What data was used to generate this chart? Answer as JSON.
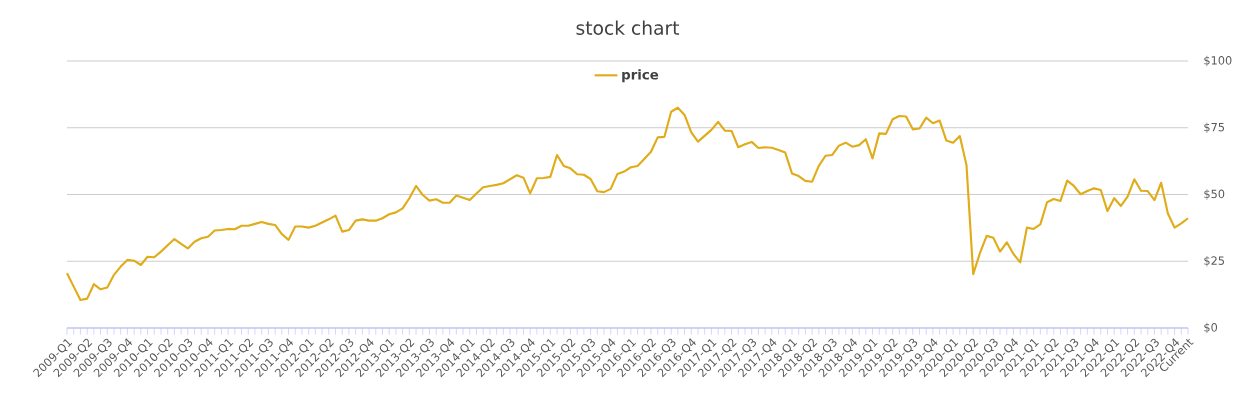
{
  "chart_data": {
    "type": "line",
    "title": "stock chart",
    "categories": [
      "2009-Q1",
      null,
      null,
      "2009-Q2",
      null,
      null,
      "2009-Q3",
      null,
      null,
      "2009-Q4",
      null,
      null,
      "2010-Q1",
      null,
      null,
      "2010-Q2",
      null,
      null,
      "2010-Q3",
      null,
      null,
      "2010-Q4",
      null,
      null,
      "2011-Q1",
      null,
      null,
      "2011-Q2",
      null,
      null,
      "2011-Q3",
      null,
      null,
      "2011-Q4",
      null,
      null,
      "2012-Q1",
      null,
      null,
      "2012-Q2",
      null,
      null,
      "2012-Q3",
      null,
      null,
      "2012-Q4",
      null,
      null,
      "2013-Q1",
      null,
      null,
      "2013-Q2",
      null,
      null,
      "2013-Q3",
      null,
      null,
      "2013-Q4",
      null,
      null,
      "2014-Q1",
      null,
      null,
      "2014-Q2",
      null,
      null,
      "2014-Q3",
      null,
      null,
      "2014-Q4",
      null,
      null,
      "2015-Q1",
      null,
      null,
      "2015-Q2",
      null,
      null,
      "2015-Q3",
      null,
      null,
      "2015-Q4",
      null,
      null,
      "2016-Q1",
      null,
      null,
      "2016-Q2",
      null,
      null,
      "2016-Q3",
      null,
      null,
      "2016-Q4",
      null,
      null,
      "2017-Q1",
      null,
      null,
      "2017-Q2",
      null,
      null,
      "2017-Q3",
      null,
      null,
      "2017-Q4",
      null,
      null,
      "2018-Q1",
      null,
      null,
      "2018-Q2",
      null,
      null,
      "2018-Q3",
      null,
      null,
      "2018-Q4",
      null,
      null,
      "2019-Q1",
      null,
      null,
      "2019-Q2",
      null,
      null,
      "2019-Q3",
      null,
      null,
      "2019-Q4",
      null,
      null,
      "2020-Q1",
      null,
      null,
      "2020-Q2",
      null,
      null,
      "2020-Q3",
      null,
      null,
      "2020-Q4",
      null,
      null,
      "2021-Q1",
      null,
      null,
      "2021-Q2",
      null,
      null,
      "2021-Q3",
      null,
      null,
      "2021-Q4",
      null,
      null,
      "2022-Q1",
      null,
      null,
      "2022-Q2",
      null,
      null,
      "2022-Q3",
      null,
      null,
      "2022-Q4",
      null,
      "Current"
    ],
    "series": [
      {
        "name": "price",
        "color": "#e0ac1a",
        "values": [
          20.5,
          15.5,
          10.5,
          11,
          16.4,
          14.5,
          15.2,
          19.9,
          23,
          25.5,
          25.2,
          23.6,
          26.7,
          26.5,
          28.6,
          31,
          33.3,
          31.5,
          29.8,
          32.3,
          33.6,
          34.2,
          36.5,
          36.7,
          37.1,
          37,
          38.3,
          38.3,
          39,
          39.7,
          39,
          38.6,
          35.2,
          33,
          38,
          38,
          37.6,
          38.3,
          39.5,
          40.7,
          42.1,
          36.1,
          36.7,
          40.2,
          40.7,
          40.2,
          40.2,
          41.1,
          42.6,
          43.3,
          44.8,
          48.6,
          53.2,
          49.8,
          47.7,
          48.2,
          46.9,
          46.9,
          49.6,
          48.8,
          47.9,
          50.4,
          52.7,
          53.2,
          53.6,
          54.2,
          55.7,
          57.2,
          56.3,
          50.4,
          56.1,
          56.2,
          56.6,
          64.8,
          60.7,
          59.8,
          57.6,
          57.4,
          55.8,
          51.2,
          50.9,
          52.1,
          57.7,
          58.6,
          60.2,
          60.7,
          63.3,
          66,
          71.4,
          71.6,
          81,
          82.5,
          79.8,
          73.3,
          69.8,
          72,
          74.2,
          77.2,
          73.9,
          73.8,
          67.7,
          68.8,
          69.7,
          67.4,
          67.7,
          67.5,
          66.7,
          65.7,
          57.9,
          56.9,
          55.1,
          54.8,
          60.7,
          64.5,
          64.8,
          68.3,
          69.4,
          67.9,
          68.5,
          70.7,
          63.5,
          72.9,
          72.7,
          78.2,
          79.4,
          79.2,
          74.4,
          74.7,
          78.8,
          76.7,
          77.7,
          70.2,
          69.4,
          71.9,
          61,
          20.2,
          28,
          34.5,
          33.8,
          28.6,
          32.1,
          27.7,
          24.6,
          37.6,
          37.1,
          38.8,
          47.1,
          48.3,
          47.6,
          55.2,
          53.2,
          50.1,
          51.3,
          52.3,
          51.7,
          43.8,
          48.6,
          45.7,
          49.2,
          55.7,
          51.4,
          51.3,
          47.9,
          54.4,
          42.9,
          37.6,
          39.2,
          41.1
        ]
      }
    ],
    "ylim": [
      0,
      100
    ],
    "yticks": [
      {
        "value": 0,
        "label": "$0"
      },
      {
        "value": 25,
        "label": "$25"
      },
      {
        "value": 50,
        "label": "$50"
      },
      {
        "value": 75,
        "label": "$75"
      },
      {
        "value": 100,
        "label": "$100"
      }
    ],
    "grid": "y",
    "legend": "top"
  }
}
